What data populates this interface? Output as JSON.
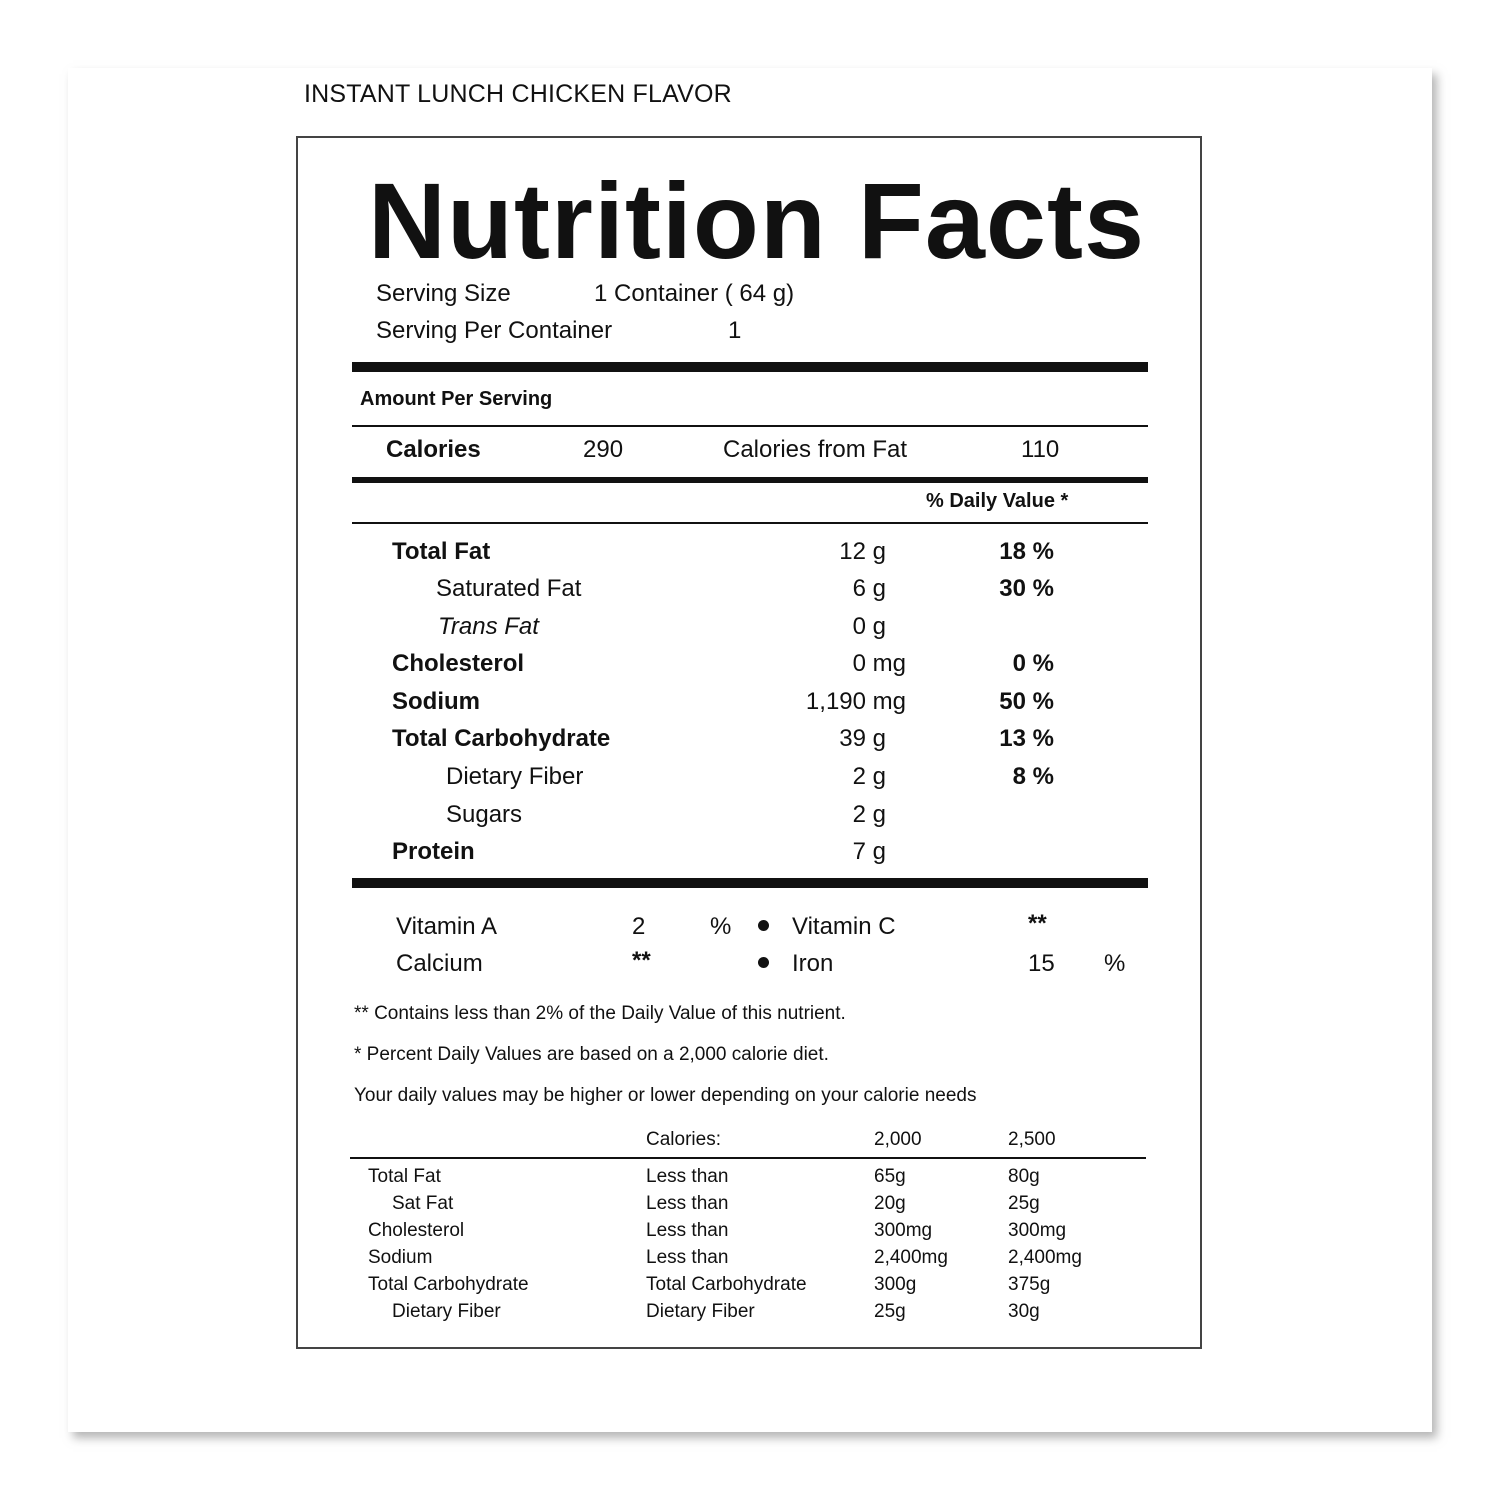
{
  "product_name": "INSTANT LUNCH  CHICKEN FLAVOR",
  "title": "Nutrition Facts",
  "serving": {
    "size_label": "Serving Size",
    "size_value": "1 Container ( 64 g)",
    "per_container_label": "Serving Per Container",
    "per_container_value": "1"
  },
  "amount_per_serving": "Amount Per Serving",
  "calories": {
    "label": "Calories",
    "value": "290",
    "from_fat_label": "Calories from Fat",
    "from_fat_value": "110"
  },
  "daily_value_header": "% Daily Value *",
  "nutrients": [
    {
      "name": "Total Fat",
      "amount": "12 g",
      "dv": "18 %"
    },
    {
      "name": "Saturated Fat",
      "amount": "6 g",
      "dv": "30 %"
    },
    {
      "name": "Trans Fat",
      "amount": "0 g",
      "dv": ""
    },
    {
      "name": "Cholesterol",
      "amount": "0 mg",
      "dv": "0 %"
    },
    {
      "name": "Sodium",
      "amount": "1,190 mg",
      "dv": "50 %"
    },
    {
      "name": "Total Carbohydrate",
      "amount": "39 g",
      "dv": "13 %"
    },
    {
      "name": "Dietary Fiber",
      "amount": "2 g",
      "dv": "8 %"
    },
    {
      "name": "Sugars",
      "amount": "2 g",
      "dv": ""
    },
    {
      "name": "Protein",
      "amount": "7 g",
      "dv": ""
    }
  ],
  "vitamins": {
    "vitamin_a": {
      "label": "Vitamin A",
      "value": "2",
      "unit": "%"
    },
    "vitamin_c": {
      "label": "Vitamin C",
      "value": "**"
    },
    "calcium": {
      "label": "Calcium",
      "value": "**"
    },
    "iron": {
      "label": "Iron",
      "value": "15",
      "unit": "%"
    }
  },
  "footnotes": {
    "less_than_2": "** Contains less than 2% of the Daily Value of this nutrient.",
    "percent_dv": "*  Percent Daily Values are based on a 2,000 calorie diet.",
    "may_vary": "Your daily values may be higher or lower depending on your calorie needs"
  },
  "reference_table": {
    "header": {
      "label": "Calories:",
      "col1": "2,000",
      "col2": "2,500"
    },
    "rows": [
      {
        "nutrient": "Total Fat",
        "qualifier": "Less than",
        "v2000": "65g",
        "v2500": "80g"
      },
      {
        "nutrient": "Sat Fat",
        "qualifier": "Less than",
        "v2000": "20g",
        "v2500": "25g"
      },
      {
        "nutrient": "Cholesterol",
        "qualifier": "Less than",
        "v2000": "300mg",
        "v2500": "300mg"
      },
      {
        "nutrient": "Sodium",
        "qualifier": "Less than",
        "v2000": "2,400mg",
        "v2500": "2,400mg"
      },
      {
        "nutrient": "Total Carbohydrate",
        "qualifier": "Total Carbohydrate",
        "v2000": "300g",
        "v2500": "375g"
      },
      {
        "nutrient": "Dietary Fiber",
        "qualifier": "Dietary Fiber",
        "v2000": "25g",
        "v2500": "30g"
      }
    ]
  }
}
